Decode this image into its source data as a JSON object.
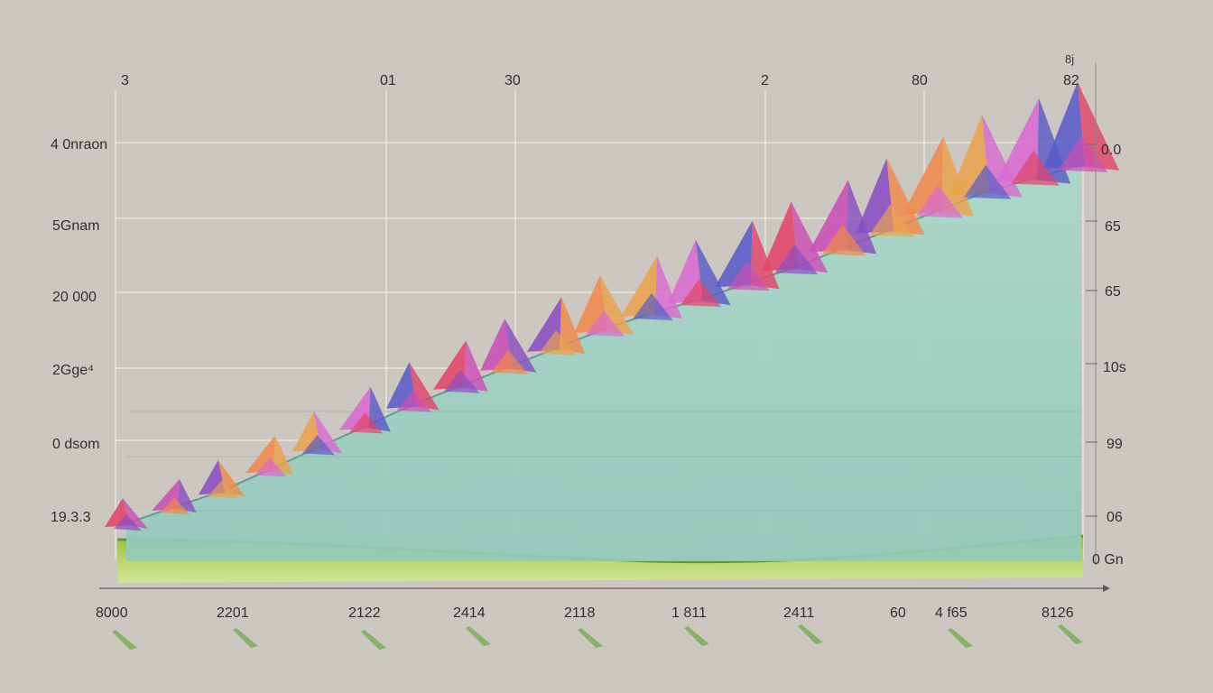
{
  "chart_data": {
    "type": "area",
    "title": "",
    "xlabel": "",
    "ylabel": "",
    "top_tick_labels": [
      "3",
      "01",
      "30",
      "2",
      "80",
      "82"
    ],
    "corner_label": "8j",
    "left_tick_labels": [
      "4 0nraon",
      "5Gnam",
      "20 000",
      "2Gge⁴",
      "0 dsom",
      "19.3.3"
    ],
    "right_tick_labels": [
      "0.0",
      "65",
      "65",
      "10s",
      "99",
      "06",
      "0 Gn"
    ],
    "x_tick_labels": [
      "8000",
      "2201",
      "2122",
      "2414",
      "2118",
      "1 811",
      "2411",
      "60",
      "4 f65",
      "8126"
    ],
    "x": [
      0,
      1,
      2,
      3,
      4,
      5,
      6,
      7,
      8,
      9,
      10,
      11,
      12,
      13,
      14,
      15,
      16,
      17,
      18,
      19,
      20
    ],
    "series": [
      {
        "values": [
          0.3,
          0.6,
          0.9,
          1.3,
          1.7,
          2.1,
          2.5,
          2.85,
          3.2,
          3.55,
          3.9,
          4.2,
          4.45,
          4.75,
          5.05,
          5.4,
          5.75,
          6.1,
          6.45,
          6.7,
          6.95
        ],
        "color": "#9fd2c3"
      }
    ],
    "baseline_band": {
      "color": "#9ac14a"
    },
    "peak_colors": [
      "#e2446a",
      "#cc4fb4",
      "#8a4fc2",
      "#f08a4a",
      "#e9a24c",
      "#d86ad0",
      "#5a5cc8"
    ],
    "ylim": [
      0,
      8
    ],
    "grid": true,
    "legend": "none"
  }
}
